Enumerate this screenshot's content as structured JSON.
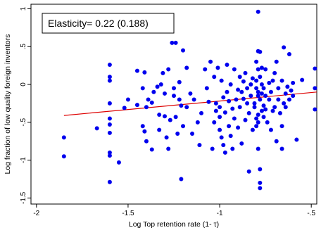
{
  "chart_data": {
    "type": "scatter",
    "xlabel": "Log Top retention rate (1- τ)",
    "ylabel": "Log fraction of low quality foreign inventors",
    "annotation": "Elasticity= 0.22 (0.188)",
    "xlim": [
      -2.03,
      -0.47
    ],
    "ylim": [
      -1.58,
      1.06
    ],
    "xticks": [
      -2,
      -1.5,
      -1,
      -0.5
    ],
    "xtick_labels": [
      "-2",
      "-1.5",
      "-1",
      "-.5"
    ],
    "yticks": [
      -1.5,
      -1,
      -0.5,
      0,
      0.5,
      1
    ],
    "ytick_labels": [
      "-1.5",
      "-1",
      "-.5",
      "0",
      ".5",
      "1"
    ],
    "grid": false,
    "colors": {
      "points": "#0000ee",
      "fit_line": "#dd0000"
    },
    "fit_line": {
      "x": [
        -1.85,
        -0.47
      ],
      "y": [
        -0.41,
        -0.1
      ]
    },
    "points": [
      [
        -1.85,
        -0.7
      ],
      [
        -1.85,
        -0.95
      ],
      [
        -1.67,
        -0.58
      ],
      [
        -1.6,
        0.26
      ],
      [
        -1.6,
        0.1
      ],
      [
        -1.6,
        0.05
      ],
      [
        -1.6,
        -0.25
      ],
      [
        -1.6,
        -0.45
      ],
      [
        -1.6,
        -0.53
      ],
      [
        -1.6,
        -0.64
      ],
      [
        -1.6,
        -0.9
      ],
      [
        -1.6,
        -0.94
      ],
      [
        -1.6,
        -1.29
      ],
      [
        -1.55,
        -1.03
      ],
      [
        -1.52,
        -0.31
      ],
      [
        -1.5,
        -0.2
      ],
      [
        -1.45,
        0.18
      ],
      [
        -1.45,
        -0.27
      ],
      [
        -1.42,
        -0.05
      ],
      [
        -1.42,
        -0.55
      ],
      [
        -1.41,
        0.16
      ],
      [
        -1.41,
        -0.62
      ],
      [
        -1.4,
        -0.3
      ],
      [
        -1.4,
        -0.75
      ],
      [
        -1.39,
        -0.2
      ],
      [
        -1.37,
        -0.24
      ],
      [
        -1.37,
        -0.86
      ],
      [
        -1.36,
        -0.1
      ],
      [
        -1.34,
        -0.03
      ],
      [
        -1.33,
        -0.4
      ],
      [
        -1.33,
        -0.6
      ],
      [
        -1.32,
        0.0
      ],
      [
        -1.31,
        0.15
      ],
      [
        -1.3,
        -0.12
      ],
      [
        -1.3,
        -0.42
      ],
      [
        -1.29,
        -0.7
      ],
      [
        -1.28,
        -0.85
      ],
      [
        -1.28,
        0.2
      ],
      [
        -1.27,
        -0.47
      ],
      [
        -1.26,
        0.55
      ],
      [
        -1.24,
        0.55
      ],
      [
        -1.25,
        -0.05
      ],
      [
        -1.25,
        -0.15
      ],
      [
        -1.24,
        -0.43
      ],
      [
        -1.23,
        -0.65
      ],
      [
        -1.22,
        -0.2
      ],
      [
        -1.22,
        0.03
      ],
      [
        -1.21,
        -0.28
      ],
      [
        -1.2,
        -0.55
      ],
      [
        -1.21,
        -1.25
      ],
      [
        -1.2,
        0.45
      ],
      [
        -1.18,
        0.22
      ],
      [
        -1.18,
        -0.3
      ],
      [
        -1.16,
        -0.12
      ],
      [
        -1.15,
        -0.65
      ],
      [
        -1.14,
        -0.2
      ],
      [
        -1.12,
        -0.5
      ],
      [
        -1.11,
        -0.8
      ],
      [
        -1.1,
        -0.38
      ],
      [
        -1.08,
        0.2
      ],
      [
        -1.07,
        -0.05
      ],
      [
        -1.06,
        -0.23
      ],
      [
        -1.05,
        0.3
      ],
      [
        -1.04,
        -0.85
      ],
      [
        -1.03,
        -0.5
      ],
      [
        -1.03,
        0.1
      ],
      [
        -1.02,
        -0.25
      ],
      [
        -1.02,
        -0.35
      ],
      [
        -1.01,
        0.22
      ],
      [
        -1.0,
        -0.3
      ],
      [
        -1.0,
        -0.43
      ],
      [
        -1.0,
        -0.6
      ],
      [
        -0.99,
        -0.7
      ],
      [
        -0.99,
        0.05
      ],
      [
        -0.98,
        -0.17
      ],
      [
        -0.98,
        -0.8
      ],
      [
        -0.97,
        -0.9
      ],
      [
        -0.97,
        -0.37
      ],
      [
        -0.96,
        0.26
      ],
      [
        -0.96,
        -0.1
      ],
      [
        -0.95,
        -0.22
      ],
      [
        -0.95,
        -0.55
      ],
      [
        -0.94,
        -0.68
      ],
      [
        -0.94,
        0.0
      ],
      [
        -0.93,
        -0.32
      ],
      [
        -0.93,
        -0.85
      ],
      [
        -0.92,
        0.2
      ],
      [
        -0.92,
        -0.45
      ],
      [
        -0.91,
        -0.2
      ],
      [
        -0.9,
        -0.07
      ],
      [
        -0.9,
        -0.57
      ],
      [
        -0.89,
        0.1
      ],
      [
        -0.89,
        -0.3
      ],
      [
        -0.88,
        -0.78
      ],
      [
        -0.88,
        -0.1
      ],
      [
        -0.87,
        -0.19
      ],
      [
        -0.87,
        0.04
      ],
      [
        -0.86,
        0.15
      ],
      [
        -0.86,
        -0.47
      ],
      [
        -0.85,
        -0.25
      ],
      [
        -0.85,
        -0.05
      ],
      [
        -0.84,
        -1.15
      ],
      [
        -0.84,
        -0.38
      ],
      [
        -0.83,
        0.0
      ],
      [
        -0.83,
        -0.15
      ],
      [
        -0.82,
        0.08
      ],
      [
        -0.82,
        -0.6
      ],
      [
        -0.81,
        -0.3
      ],
      [
        -0.81,
        -0.25
      ],
      [
        -0.8,
        -0.05
      ],
      [
        -0.8,
        0.05
      ],
      [
        -0.8,
        0.3
      ],
      [
        -0.8,
        -0.55
      ],
      [
        -0.8,
        -0.45
      ],
      [
        -0.79,
        0.96
      ],
      [
        -0.79,
        0.44
      ],
      [
        -0.79,
        0.2
      ],
      [
        -0.79,
        -0.1
      ],
      [
        -0.79,
        -0.15
      ],
      [
        -0.79,
        -0.4
      ],
      [
        -0.79,
        -0.5
      ],
      [
        -0.79,
        -0.85
      ],
      [
        -0.78,
        0.43
      ],
      [
        -0.78,
        0.1
      ],
      [
        -0.78,
        -0.2
      ],
      [
        -0.78,
        -1.12
      ],
      [
        -0.78,
        -1.3
      ],
      [
        -0.78,
        -1.37
      ],
      [
        -0.77,
        0.22
      ],
      [
        -0.77,
        0.0
      ],
      [
        -0.77,
        -0.12
      ],
      [
        -0.77,
        -0.35
      ],
      [
        -0.76,
        -0.05
      ],
      [
        -0.76,
        -0.28
      ],
      [
        -0.76,
        -0.43
      ],
      [
        -0.75,
        0.2
      ],
      [
        -0.75,
        -0.15
      ],
      [
        -0.75,
        -0.33
      ],
      [
        -0.74,
        -0.5
      ],
      [
        -0.73,
        0.02
      ],
      [
        -0.73,
        -0.2
      ],
      [
        -0.72,
        -0.1
      ],
      [
        -0.72,
        -0.6
      ],
      [
        -0.71,
        0.05
      ],
      [
        -0.71,
        -0.35
      ],
      [
        -0.7,
        0.15
      ],
      [
        -0.7,
        -0.3
      ],
      [
        -0.69,
        -0.75
      ],
      [
        -0.69,
        0.3
      ],
      [
        -0.68,
        -0.05
      ],
      [
        -0.68,
        -0.2
      ],
      [
        -0.67,
        -0.38
      ],
      [
        -0.66,
        0.05
      ],
      [
        -0.66,
        -0.55
      ],
      [
        -0.66,
        -0.85
      ],
      [
        -0.65,
        0.49
      ],
      [
        -0.65,
        -0.25
      ],
      [
        -0.64,
        -0.12
      ],
      [
        -0.64,
        -0.3
      ],
      [
        -0.63,
        -0.03
      ],
      [
        -0.62,
        -0.2
      ],
      [
        -0.62,
        0.4
      ],
      [
        -0.61,
        -0.08
      ],
      [
        -0.6,
        -0.15
      ],
      [
        -0.6,
        0.02
      ],
      [
        -0.58,
        -0.73
      ],
      [
        -0.55,
        0.06
      ],
      [
        -0.48,
        -0.05
      ],
      [
        -0.48,
        0.21
      ],
      [
        -0.48,
        -0.33
      ]
    ]
  }
}
